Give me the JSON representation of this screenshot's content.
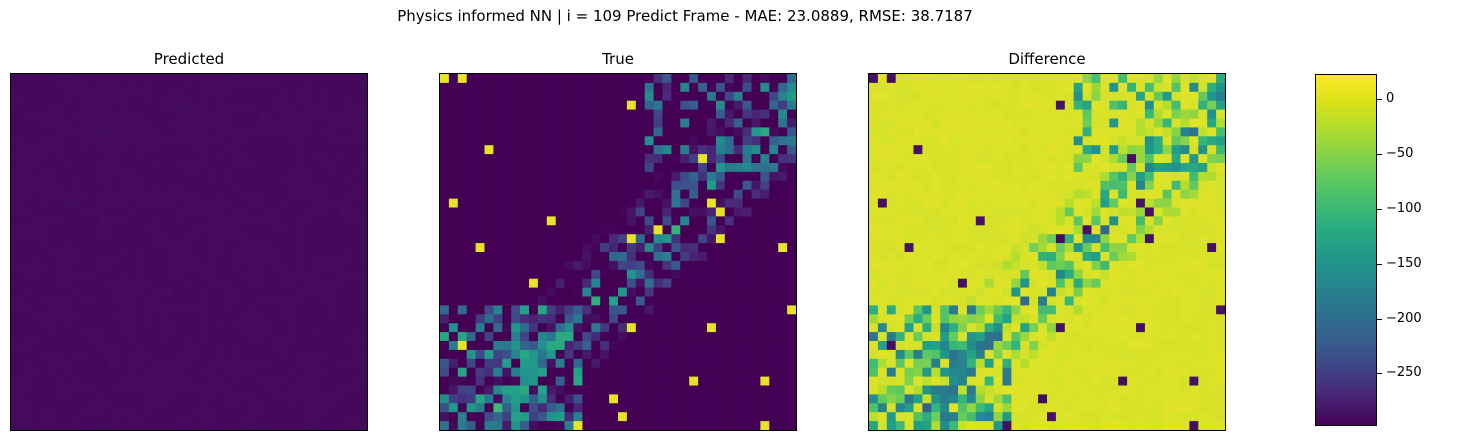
{
  "suptitle": "Physics informed NN | i = 109 Predict Frame - MAE: 23.0889, RMSE: 38.7187",
  "panels": {
    "predicted": {
      "title": "Predicted"
    },
    "true": {
      "title": "True"
    },
    "difference": {
      "title": "Difference"
    }
  },
  "colorbar": {
    "colormap": "viridis",
    "range": [
      -298,
      23
    ],
    "ticks": [
      {
        "value": 0,
        "label": "0"
      },
      {
        "value": -50,
        "label": "−50"
      },
      {
        "value": -100,
        "label": "−100"
      },
      {
        "value": -150,
        "label": "−150"
      },
      {
        "value": -200,
        "label": "−200"
      },
      {
        "value": -250,
        "label": "−250"
      }
    ]
  },
  "chart_data": {
    "type": "heatmap",
    "grid_size": [
      40,
      40
    ],
    "panels": [
      "Predicted",
      "True",
      "Difference"
    ],
    "color_range": [
      -298,
      23
    ],
    "colormap": "viridis",
    "note_features": "True field: diagonal band of high values from bottom-left to top-right; Predicted: near-uniform low values; Difference = Predicted - True"
  }
}
